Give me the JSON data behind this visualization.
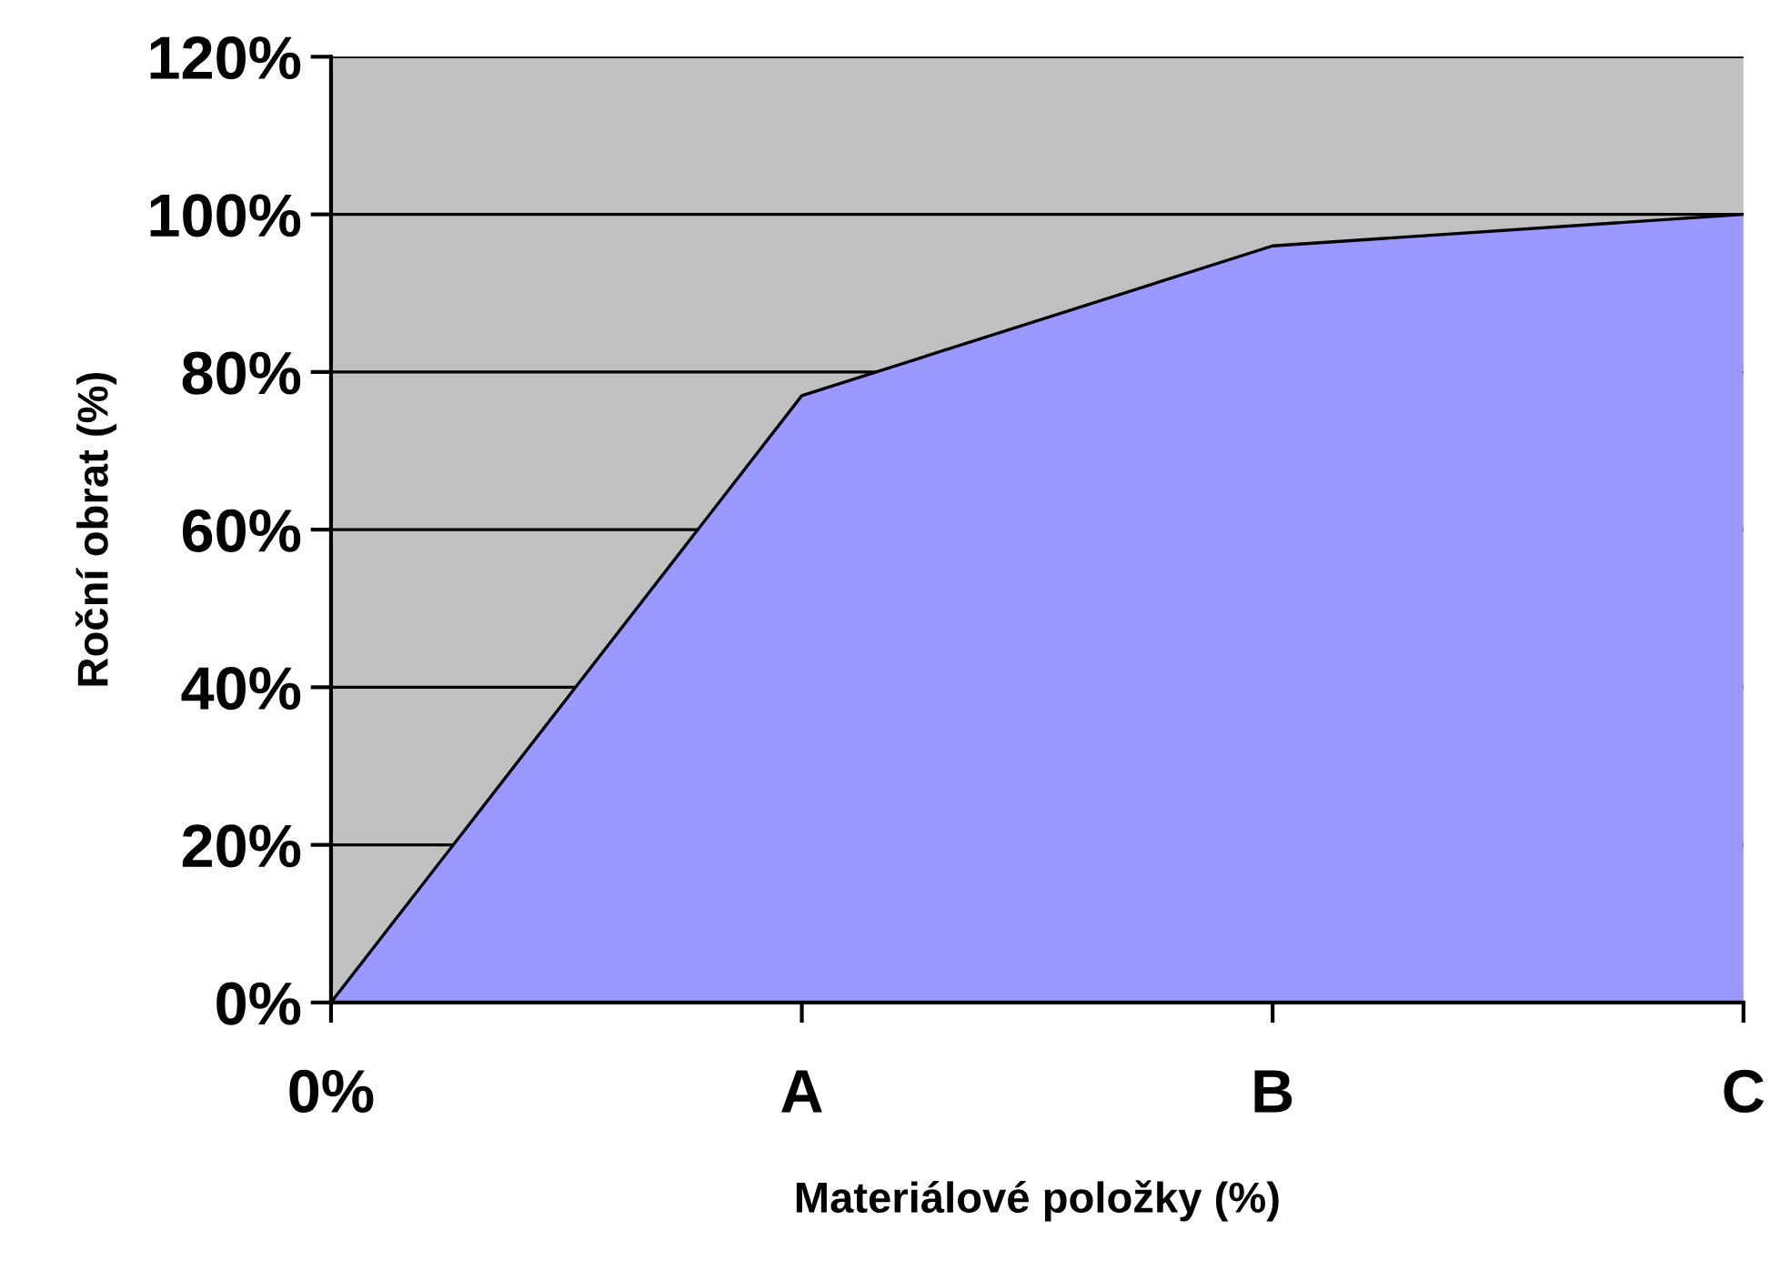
{
  "chart_data": {
    "type": "area",
    "xlabel": "Materiálové položky (%)",
    "ylabel": "Roční obrat (%)",
    "categories": [
      "0%",
      "A",
      "B",
      "C"
    ],
    "series": [
      {
        "color": "#9999ff",
        "values": [
          0,
          77,
          96,
          100
        ]
      }
    ],
    "ylim": [
      0,
      120
    ],
    "yticks": [
      {
        "value": 0,
        "label": "0%"
      },
      {
        "value": 20,
        "label": "20%"
      },
      {
        "value": 40,
        "label": "40%"
      },
      {
        "value": 60,
        "label": "60%"
      },
      {
        "value": 80,
        "label": "80%"
      },
      {
        "value": 100,
        "label": "100%"
      },
      {
        "value": 120,
        "label": "120%"
      }
    ],
    "grid": "y"
  }
}
